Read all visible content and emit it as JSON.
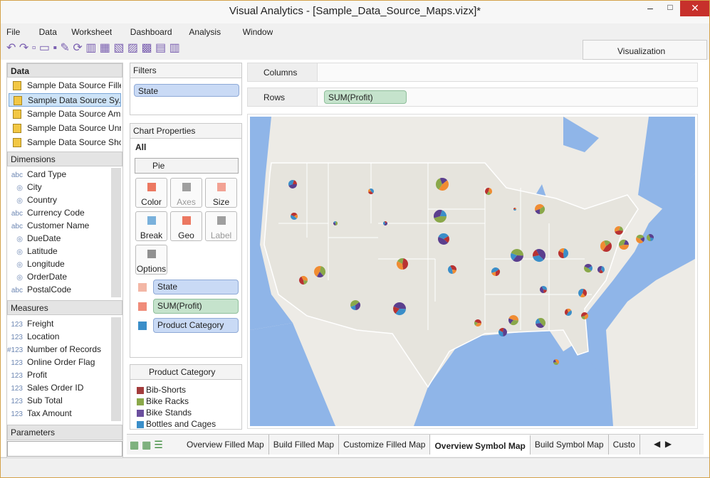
{
  "window": {
    "title": "Visual Analytics - [Sample_Data_Source_Maps.vizx]*"
  },
  "menu": [
    "File",
    "Data",
    "Worksheet",
    "Dashboard",
    "Analysis",
    "Window"
  ],
  "toolbar": {
    "visualization": "Visualization"
  },
  "data_panel": {
    "title": "Data",
    "sources": [
      "Sample Data Source Fille...",
      "Sample Data Source Sy...",
      "Sample Data Source Am...",
      "Sample Data Source Unr...",
      "Sample Data Source Sho..."
    ]
  },
  "dimensions": {
    "title": "Dimensions",
    "items": [
      {
        "icon": "abc",
        "label": "Card Type"
      },
      {
        "label": "City"
      },
      {
        "label": "Country"
      },
      {
        "icon": "abc",
        "label": "Currency Code"
      },
      {
        "icon": "abc",
        "label": "Customer Name"
      },
      {
        "label": "DueDate"
      },
      {
        "label": "Latitude"
      },
      {
        "label": "Longitude"
      },
      {
        "label": "OrderDate"
      },
      {
        "icon": "abc",
        "label": "PostalCode"
      }
    ]
  },
  "measures": {
    "title": "Measures",
    "items": [
      {
        "icon": "123",
        "label": "Freight"
      },
      {
        "icon": "123",
        "label": "Location"
      },
      {
        "icon": "#123",
        "label": "Number of Records"
      },
      {
        "icon": "123",
        "label": "Online Order Flag"
      },
      {
        "icon": "123",
        "label": "Profit"
      },
      {
        "icon": "123",
        "label": "Sales Order ID"
      },
      {
        "icon": "123",
        "label": "Sub Total"
      },
      {
        "icon": "123",
        "label": "Tax Amount"
      }
    ]
  },
  "parameters": {
    "title": "Parameters"
  },
  "filters": {
    "title": "Filters",
    "items": [
      "State"
    ]
  },
  "chart_properties": {
    "title": "Chart Properties",
    "scope": "All",
    "chart_type": "Pie",
    "buttons": [
      "Color",
      "Axes",
      "Size",
      "Break",
      "Geo",
      "Label",
      "Options"
    ],
    "shelves": [
      "State",
      "SUM(Profit)",
      "Product Category"
    ]
  },
  "legend": {
    "title": "Product Category",
    "items": [
      {
        "label": "Bib-Shorts",
        "color": "#a33c3c"
      },
      {
        "label": "Bike Racks",
        "color": "#8aa84a"
      },
      {
        "label": "Bike Stands",
        "color": "#6b4f9e"
      },
      {
        "label": "Bottles and Cages",
        "color": "#3a8ec9"
      }
    ]
  },
  "shelves": {
    "columns": "Columns",
    "rows": "Rows",
    "rows_pill": "SUM(Profit)"
  },
  "tabs": {
    "items": [
      "Overview Filled Map",
      "Build Filled Map",
      "Customize Filled Map",
      "Overview Symbol Map",
      "Build Symbol Map",
      "Custo"
    ],
    "active": 3
  }
}
